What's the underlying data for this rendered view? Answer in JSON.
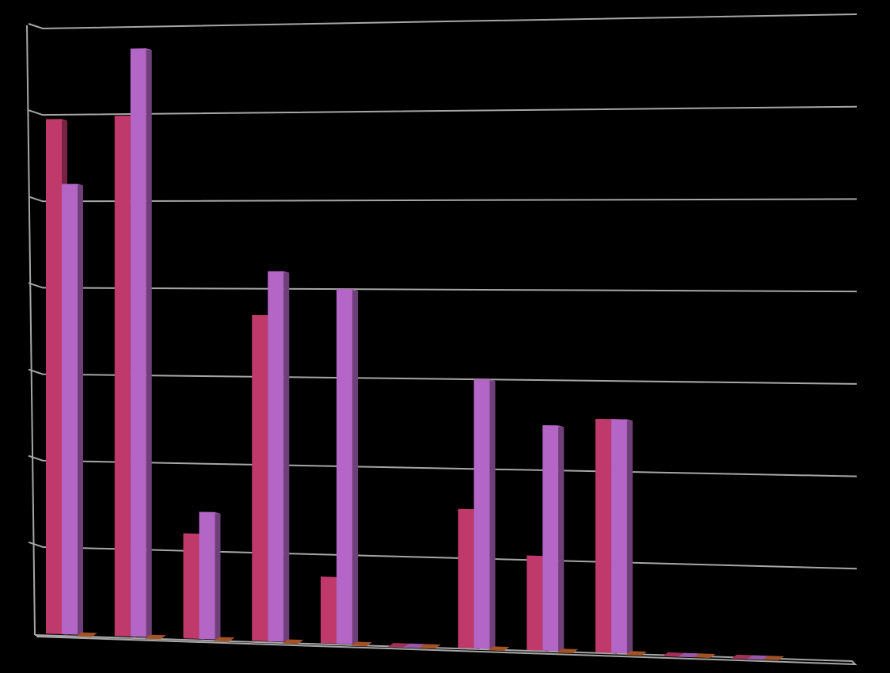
{
  "chart_data": {
    "type": "bar",
    "style": "3d-clustered-column",
    "background_color": "#000000",
    "grid": true,
    "grid_color": "#a6a6a6",
    "ylim": [
      0,
      7
    ],
    "tick_step": 1,
    "tick_labels_visible": false,
    "legend": "none",
    "title": "",
    "xlabel": "",
    "ylabel": "",
    "categories": [
      "",
      "",
      "",
      "",
      "",
      "",
      "",
      "",
      "",
      "",
      ""
    ],
    "series": [
      {
        "name": "",
        "color": "#c0396b",
        "values": [
          5.95,
          5.98,
          1.2,
          3.7,
          0.75,
          0.0,
          1.55,
          1.05,
          2.58,
          0.0,
          0.0
        ]
      },
      {
        "name": "",
        "color": "#b366c5",
        "values": [
          5.2,
          6.75,
          1.45,
          4.2,
          4.0,
          0.0,
          3.0,
          2.5,
          2.58,
          0.0,
          0.0
        ]
      },
      {
        "name": "",
        "color": "#c0612d",
        "values": [
          0,
          0,
          0,
          0,
          0,
          0,
          0,
          0,
          0,
          0,
          0
        ]
      }
    ]
  }
}
